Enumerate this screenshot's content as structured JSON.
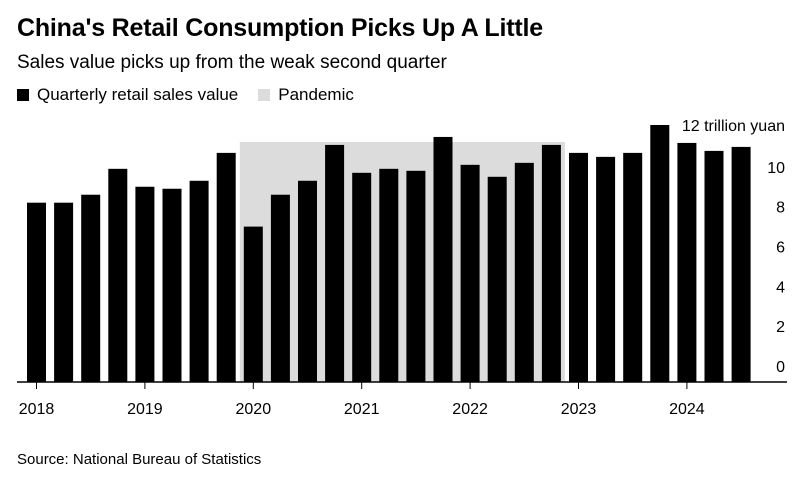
{
  "chart_data": {
    "type": "bar",
    "title": "China's Retail Consumption Picks Up A Little",
    "subtitle": "Sales value picks up from the weak second quarter",
    "unit_label": "12 trillion yuan",
    "colors": {
      "bar": "#000000",
      "pandemic": "#dcdcdc",
      "axis": "#000000"
    },
    "legend": [
      {
        "name": "Quarterly retail sales value",
        "color": "#000000"
      },
      {
        "name": "Pandemic",
        "color": "#dcdcdc"
      }
    ],
    "series": [
      {
        "name": "Quarterly retail sales value",
        "categories": [
          "2018 Q1",
          "2018 Q2",
          "2018 Q3",
          "2018 Q4",
          "2019 Q1",
          "2019 Q2",
          "2019 Q3",
          "2019 Q4",
          "2020 Q1",
          "2020 Q2",
          "2020 Q3",
          "2020 Q4",
          "2021 Q1",
          "2021 Q2",
          "2021 Q3",
          "2021 Q4",
          "2022 Q1",
          "2022 Q2",
          "2022 Q3",
          "2022 Q4",
          "2023 Q1",
          "2023 Q2",
          "2023 Q3",
          "2023 Q4",
          "2024 Q1",
          "2024 Q2",
          "2024 Q3",
          "2024 Q4"
        ],
        "values": [
          9.0,
          9.0,
          9.4,
          10.7,
          9.8,
          9.7,
          10.1,
          11.5,
          7.8,
          9.4,
          10.1,
          11.9,
          10.5,
          10.7,
          10.6,
          12.3,
          10.9,
          10.3,
          11.0,
          11.9,
          11.5,
          11.3,
          11.5,
          12.9,
          12.0,
          11.6,
          11.8,
          0
        ]
      }
    ],
    "pandemic_range": [
      "2020 Q1",
      "2022 Q4"
    ],
    "x_tick_labels": [
      "2018",
      "2019",
      "2020",
      "2021",
      "2022",
      "2023",
      "2024"
    ],
    "y_ticks": [
      "0",
      "2",
      "4",
      "6",
      "8",
      "10"
    ],
    "ylim": [
      0,
      13
    ],
    "source": "Source: National Bureau of Statistics"
  }
}
